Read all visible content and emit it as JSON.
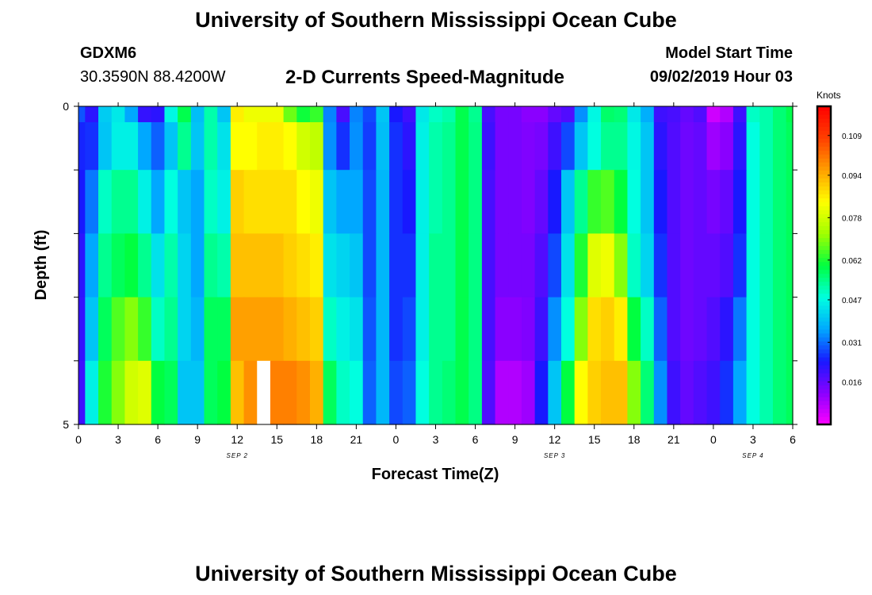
{
  "page": {
    "title_top": "University of Southern Mississippi Ocean Cube",
    "title_bottom": "University of Southern Mississippi Ocean Cube",
    "station_id": "GDXM6",
    "station_coords": "30.3590N 88.4200W",
    "model_start_label": "Model Start Time",
    "model_start_value": "09/02/2019 Hour 03",
    "units_label": "Knots"
  },
  "colors": {
    "background": "#ffffff",
    "frame": "#000000",
    "scale": [
      "#ff00ff",
      "#8a00ff",
      "#1818ff",
      "#00a8ff",
      "#00ffe0",
      "#00ff40",
      "#a0ff00",
      "#ffff00",
      "#ffa000",
      "#ff4000",
      "#ff0000"
    ]
  },
  "chart_data": {
    "type": "heatmap",
    "title": "2-D Currents Speed-Magnitude",
    "xlabel": "Forecast Time(Z)",
    "ylabel": "Depth (ft)",
    "xlim": [
      0,
      54
    ],
    "ylim": [
      0,
      5
    ],
    "x_tick_labels": [
      "0",
      "3",
      "6",
      "9",
      "12",
      "15",
      "18",
      "21",
      "0",
      "3",
      "6",
      "9",
      "12",
      "15",
      "18",
      "21",
      "0",
      "3",
      "6"
    ],
    "y_tick_labels": [
      "0",
      "5"
    ],
    "date_markers": [
      {
        "label": "SEP 2",
        "hour": 12
      },
      {
        "label": "SEP 3",
        "hour": 36
      },
      {
        "label": "SEP 4",
        "hour": 51
      }
    ],
    "colorbar": {
      "label": "Knots",
      "min": 0.0,
      "max": 0.12,
      "tick_labels": [
        "0.016",
        "0.031",
        "0.047",
        "0.062",
        "0.078",
        "0.094",
        "0.109"
      ],
      "tick_values": [
        0.016,
        0.031,
        0.047,
        0.062,
        0.078,
        0.094,
        0.109
      ]
    },
    "depth_levels_ft": [
      0,
      0.5,
      1.5,
      2.5,
      3.5,
      4.5
    ],
    "hours": [
      0,
      1,
      2,
      3,
      4,
      5,
      6,
      7,
      8,
      9,
      10,
      11,
      12,
      13,
      14,
      15,
      16,
      17,
      18,
      19,
      20,
      21,
      22,
      23,
      24,
      25,
      26,
      27,
      28,
      29,
      30,
      31,
      32,
      33,
      34,
      35,
      36,
      37,
      38,
      39,
      40,
      41,
      42,
      43,
      44,
      45,
      46,
      47,
      48,
      49,
      50,
      51,
      52,
      53,
      54
    ],
    "missing_cells": [
      {
        "hour": 14,
        "depth_ft": 4.5
      }
    ],
    "series": [
      {
        "name": "0 ft",
        "values": [
          0.029,
          0.022,
          0.041,
          0.045,
          0.036,
          0.021,
          0.022,
          0.047,
          0.059,
          0.039,
          0.052,
          0.04,
          0.086,
          0.082,
          0.082,
          0.082,
          0.068,
          0.061,
          0.064,
          0.033,
          0.019,
          0.033,
          0.028,
          0.04,
          0.024,
          0.02,
          0.045,
          0.05,
          0.052,
          0.059,
          0.054,
          0.019,
          0.014,
          0.014,
          0.012,
          0.012,
          0.016,
          0.018,
          0.034,
          0.047,
          0.057,
          0.056,
          0.045,
          0.037,
          0.02,
          0.019,
          0.016,
          0.018,
          0.005,
          0.008,
          0.02,
          0.05,
          0.052,
          0.056,
          0.059
        ]
      },
      {
        "name": "0.5 ft",
        "values": [
          0.025,
          0.026,
          0.04,
          0.046,
          0.046,
          0.036,
          0.03,
          0.04,
          0.054,
          0.04,
          0.052,
          0.044,
          0.084,
          0.084,
          0.086,
          0.086,
          0.084,
          0.078,
          0.076,
          0.034,
          0.026,
          0.034,
          0.027,
          0.039,
          0.026,
          0.022,
          0.046,
          0.052,
          0.054,
          0.059,
          0.055,
          0.02,
          0.014,
          0.014,
          0.013,
          0.014,
          0.02,
          0.028,
          0.04,
          0.048,
          0.054,
          0.054,
          0.047,
          0.04,
          0.022,
          0.018,
          0.015,
          0.016,
          0.01,
          0.012,
          0.022,
          0.048,
          0.052,
          0.056,
          0.058
        ]
      },
      {
        "name": "1.5 ft",
        "values": [
          0.024,
          0.032,
          0.05,
          0.054,
          0.054,
          0.046,
          0.036,
          0.048,
          0.04,
          0.036,
          0.05,
          0.046,
          0.09,
          0.088,
          0.088,
          0.088,
          0.088,
          0.084,
          0.082,
          0.04,
          0.036,
          0.036,
          0.028,
          0.038,
          0.026,
          0.024,
          0.046,
          0.052,
          0.054,
          0.059,
          0.055,
          0.019,
          0.014,
          0.014,
          0.013,
          0.016,
          0.024,
          0.04,
          0.054,
          0.064,
          0.066,
          0.06,
          0.048,
          0.04,
          0.024,
          0.018,
          0.015,
          0.016,
          0.014,
          0.016,
          0.024,
          0.048,
          0.052,
          0.056,
          0.058
        ]
      },
      {
        "name": "2.5 ft",
        "values": [
          0.022,
          0.036,
          0.054,
          0.058,
          0.06,
          0.054,
          0.044,
          0.052,
          0.042,
          0.036,
          0.054,
          0.052,
          0.092,
          0.092,
          0.092,
          0.092,
          0.09,
          0.088,
          0.086,
          0.044,
          0.042,
          0.04,
          0.028,
          0.038,
          0.026,
          0.026,
          0.046,
          0.054,
          0.054,
          0.059,
          0.055,
          0.019,
          0.014,
          0.014,
          0.014,
          0.018,
          0.028,
          0.044,
          0.062,
          0.08,
          0.082,
          0.07,
          0.05,
          0.042,
          0.026,
          0.018,
          0.015,
          0.016,
          0.016,
          0.018,
          0.026,
          0.048,
          0.052,
          0.056,
          0.058
        ]
      },
      {
        "name": "3.5 ft",
        "values": [
          0.021,
          0.04,
          0.058,
          0.066,
          0.07,
          0.064,
          0.05,
          0.054,
          0.042,
          0.038,
          0.058,
          0.058,
          0.096,
          0.096,
          0.096,
          0.096,
          0.094,
          0.092,
          0.09,
          0.05,
          0.046,
          0.044,
          0.029,
          0.038,
          0.026,
          0.028,
          0.046,
          0.054,
          0.054,
          0.059,
          0.055,
          0.019,
          0.012,
          0.012,
          0.013,
          0.02,
          0.034,
          0.048,
          0.07,
          0.088,
          0.09,
          0.086,
          0.06,
          0.05,
          0.03,
          0.018,
          0.015,
          0.016,
          0.018,
          0.022,
          0.032,
          0.048,
          0.052,
          0.056,
          0.058
        ]
      },
      {
        "name": "4.5 ft",
        "values": [
          0.02,
          0.046,
          0.062,
          0.07,
          0.078,
          0.08,
          0.06,
          0.058,
          0.04,
          0.04,
          0.058,
          0.06,
          0.092,
          0.098,
          null,
          0.1,
          0.1,
          0.098,
          0.094,
          0.058,
          0.05,
          0.048,
          0.03,
          0.038,
          0.028,
          0.03,
          0.048,
          0.054,
          0.056,
          0.059,
          0.055,
          0.018,
          0.008,
          0.008,
          0.01,
          0.024,
          0.04,
          0.06,
          0.084,
          0.09,
          0.092,
          0.092,
          0.07,
          0.056,
          0.034,
          0.02,
          0.016,
          0.018,
          0.02,
          0.026,
          0.036,
          0.048,
          0.052,
          0.056,
          0.058
        ]
      }
    ]
  }
}
